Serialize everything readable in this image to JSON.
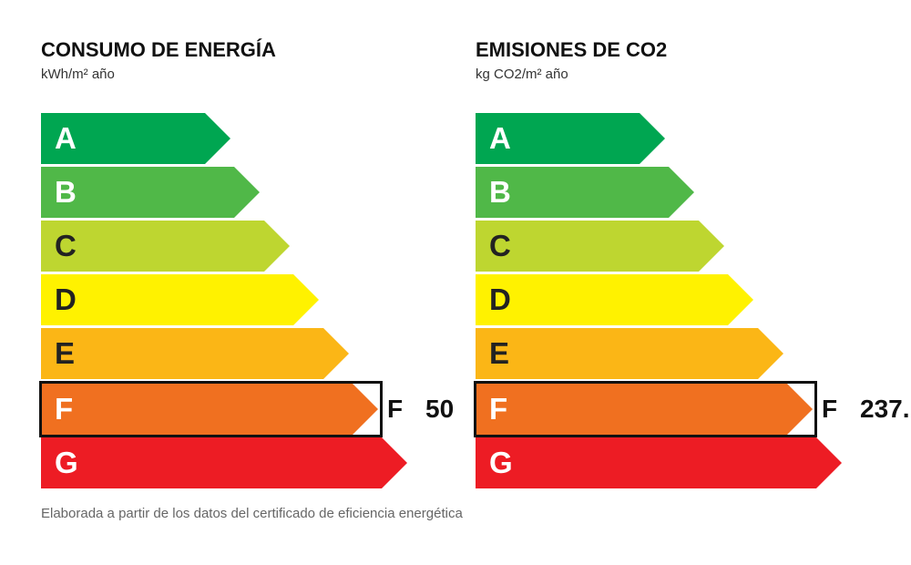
{
  "energy": {
    "title": "CONSUMO DE ENERGÍA",
    "unit": "kWh/m² año",
    "rating": "F",
    "value": "50"
  },
  "emissions": {
    "title": "EMISIONES DE CO2",
    "unit": "kg CO2/m² año",
    "rating": "F",
    "value": "237."
  },
  "scale": [
    {
      "letter": "A",
      "color": "#00a651",
      "text_color": "#ffffff"
    },
    {
      "letter": "B",
      "color": "#50b848",
      "text_color": "#ffffff"
    },
    {
      "letter": "C",
      "color": "#bed630",
      "text_color": "#222222"
    },
    {
      "letter": "D",
      "color": "#fff200",
      "text_color": "#222222"
    },
    {
      "letter": "E",
      "color": "#fbb616",
      "text_color": "#222222"
    },
    {
      "letter": "F",
      "color": "#f07020",
      "text_color": "#ffffff"
    },
    {
      "letter": "G",
      "color": "#ed1c24",
      "text_color": "#ffffff"
    }
  ],
  "footnote": "Elaborada a partir de los datos del certificado de eficiencia energética"
}
